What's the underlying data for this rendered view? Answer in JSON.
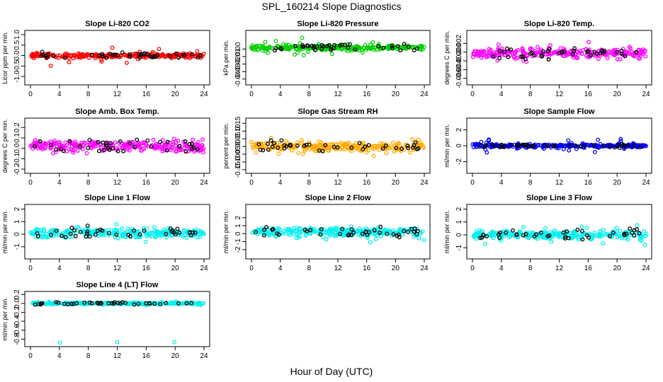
{
  "figure_title": "SPL_160214  Slope Diagnostics",
  "x_axis_label": "Hour of Day (UTC)",
  "chart_data": [
    {
      "type": "scatter",
      "title": "Slope Li-820 CO2",
      "ylabel": "Licor ppm per min.",
      "color": "#ff0000",
      "xlim": [
        0,
        24
      ],
      "ylim": [
        -1.3,
        1.1
      ],
      "xticks": [
        0,
        4,
        8,
        12,
        16,
        20,
        24
      ],
      "yticks": [
        -1.0,
        -0.5,
        0.0,
        0.5,
        1.0
      ],
      "yticklabels": [
        "-1.0",
        "-0.5",
        "0.0",
        "0.5",
        "1.0"
      ],
      "center": 0.0,
      "spread": 0.18,
      "outlier_spread": 0.55,
      "seed": 11
    },
    {
      "type": "scatter",
      "title": "Slope Li-820 Pressure",
      "ylabel": "kPa per min.",
      "color": "#00d000",
      "xlim": [
        0,
        24
      ],
      "ylim": [
        -0.045,
        0.022
      ],
      "xticks": [
        0,
        4,
        8,
        12,
        16,
        20,
        24
      ],
      "yticks": [
        -0.04,
        -0.03,
        -0.02,
        -0.01,
        0.0
      ],
      "yticklabels": [
        "-0.04",
        "-0.03",
        "-0.02",
        "-0.01",
        "0.00"
      ],
      "center": 0.002,
      "spread": 0.006,
      "outlier_spread": 0.018,
      "seed": 23
    },
    {
      "type": "scatter",
      "title": "Slope Li-820 Temp.",
      "ylabel": "degrees C per min.",
      "color": "#ff00ff",
      "xlim": [
        0,
        24
      ],
      "ylim": [
        -0.007,
        0.0045
      ],
      "xticks": [
        0,
        4,
        8,
        12,
        16,
        20,
        24
      ],
      "yticks": [
        -0.006,
        -0.004,
        -0.002,
        0.0,
        0.002
      ],
      "yticklabels": [
        "-0.006",
        "-0.004",
        "-0.002",
        "0.000",
        "0.002"
      ],
      "center": -0.0003,
      "spread": 0.0018,
      "outlier_spread": 0.004,
      "seed": 37
    },
    {
      "type": "scatter",
      "title": "Slope Amb. Box Temp.",
      "ylabel": "degrees C per min.",
      "color": "#ff00ff",
      "xlim": [
        0,
        24
      ],
      "ylim": [
        -0.22,
        0.27
      ],
      "xticks": [
        0,
        4,
        8,
        12,
        16,
        20,
        24
      ],
      "yticks": [
        -0.2,
        -0.1,
        0.0,
        0.1,
        0.2
      ],
      "yticklabels": [
        "-0.2",
        "-0.1",
        "0.0",
        "0.1",
        "0.2"
      ],
      "center": 0.02,
      "spread": 0.09,
      "outlier_spread": 0.14,
      "seed": 41
    },
    {
      "type": "scatter",
      "title": "Slope Gas Stream RH",
      "ylabel": "percent per min.",
      "color": "#ffaa00",
      "xlim": [
        0,
        24
      ],
      "ylim": [
        -0.16,
        0.17
      ],
      "xticks": [
        0,
        4,
        8,
        12,
        16,
        20,
        24
      ],
      "yticks": [
        -0.15,
        -0.1,
        -0.05,
        0.0,
        0.05,
        0.1,
        0.15
      ],
      "yticklabels": [
        "-0.15",
        "-0.10",
        "-0.05",
        "0.00",
        "0.05",
        "0.10",
        "0.15"
      ],
      "center": 0.0,
      "spread": 0.05,
      "outlier_spread": 0.13,
      "seed": 53
    },
    {
      "type": "scatter",
      "title": "Slope Sample Flow",
      "ylabel": "ml/min per min.",
      "color": "#0000ff",
      "xlim": [
        0,
        24
      ],
      "ylim": [
        -3.2,
        3.2
      ],
      "xticks": [
        0,
        4,
        8,
        12,
        16,
        20,
        24
      ],
      "yticks": [
        -2,
        0,
        2
      ],
      "yticklabels": [
        "-2",
        "0",
        "2"
      ],
      "center": 0.0,
      "spread": 0.35,
      "outlier_spread": 1.6,
      "seed": 67
    },
    {
      "type": "scatter",
      "title": "Slope Line 1 Flow",
      "ylabel": "ml/min per min.",
      "color": "#00f0f0",
      "xlim": [
        0,
        24
      ],
      "ylim": [
        -1.8,
        2.2
      ],
      "xticks": [
        0,
        4,
        8,
        12,
        16,
        20,
        24
      ],
      "yticks": [
        -1,
        0,
        1,
        2
      ],
      "yticklabels": [
        "-1",
        "0",
        "1",
        "2"
      ],
      "center": 0.1,
      "spread": 0.6,
      "outlier_spread": 1.1,
      "seed": 71
    },
    {
      "type": "scatter",
      "title": "Slope Line 2 Flow",
      "ylabel": "ml/min per min.",
      "color": "#00f0f0",
      "xlim": [
        0,
        24
      ],
      "ylim": [
        -2.9,
        3.4
      ],
      "xticks": [
        0,
        4,
        8,
        12,
        16,
        20,
        24
      ],
      "yticks": [
        -2,
        -1,
        0,
        1,
        2
      ],
      "yticklabels": [
        "-2",
        "-1",
        "0",
        "1",
        "2"
      ],
      "center": 0.2,
      "spread": 0.9,
      "outlier_spread": 1.8,
      "seed": 83
    },
    {
      "type": "scatter",
      "title": "Slope Line 3 Flow",
      "ylabel": "ml/min per min.",
      "color": "#00f0f0",
      "xlim": [
        0,
        24
      ],
      "ylim": [
        -1.7,
        2.2
      ],
      "xticks": [
        0,
        4,
        8,
        12,
        16,
        20,
        24
      ],
      "yticks": [
        -1,
        0,
        1,
        2
      ],
      "yticklabels": [
        "-1",
        "0",
        "1",
        "2"
      ],
      "center": 0.0,
      "spread": 0.55,
      "outlier_spread": 1.1,
      "seed": 97
    },
    {
      "type": "scatter",
      "title": "Slope Line 4 (LT) Flow",
      "ylabel": "ml/min per min.",
      "color": "#00f0f0",
      "xlim": [
        0,
        24
      ],
      "ylim": [
        -0.92,
        0.22
      ],
      "xticks": [
        0,
        4,
        8,
        12,
        16,
        20,
        24
      ],
      "yticks": [
        -0.8,
        -0.6,
        -0.4,
        -0.2,
        0.0,
        0.2
      ],
      "yticklabels": [
        "-0.8",
        "-0.6",
        "-0.4",
        "-0.2",
        "0.0",
        "0.2"
      ],
      "center": 0.0,
      "spread": 0.035,
      "outlier_spread": 0.06,
      "seed": 101,
      "extra_points": [
        [
          4.1,
          -0.88
        ],
        [
          12.0,
          -0.87
        ],
        [
          19.9,
          -0.87
        ]
      ]
    }
  ]
}
